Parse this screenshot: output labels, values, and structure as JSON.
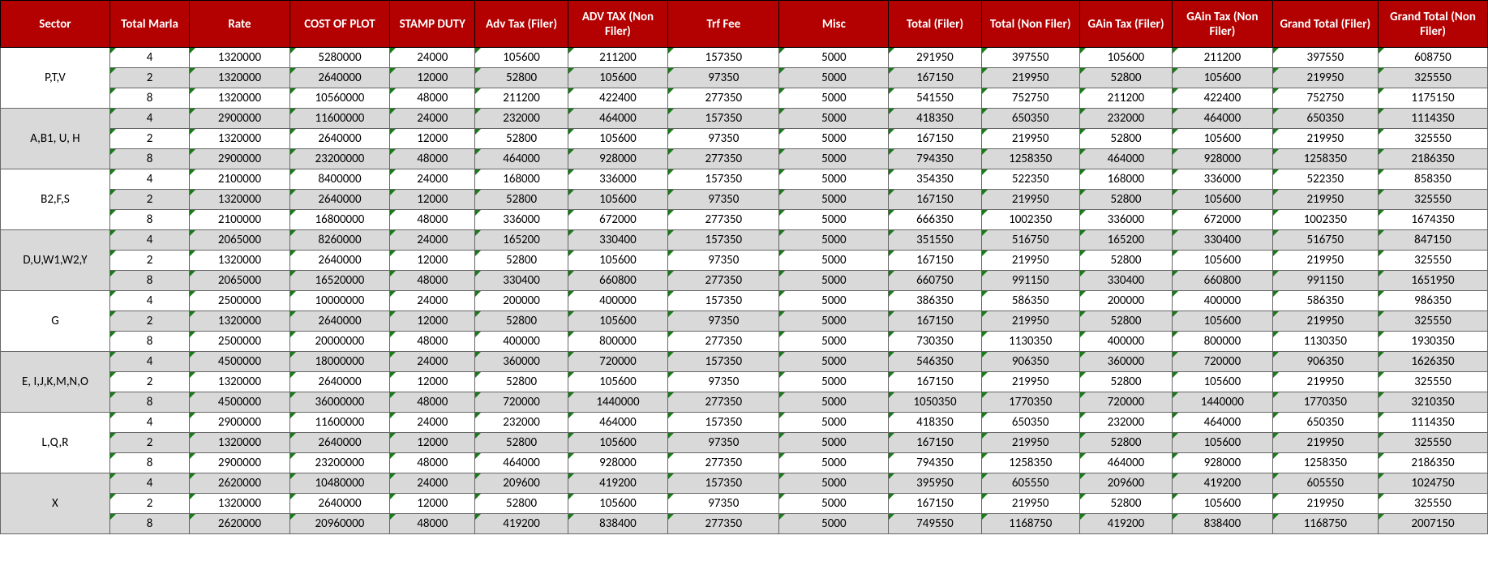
{
  "header_bg": "#b30000",
  "header_fg": "#ffffff",
  "shade_bg": "#d9d9d9",
  "columns": [
    "Sector",
    "Total Marla",
    "Rate",
    "COST OF PLOT",
    "STAMP DUTY",
    "Adv Tax (Filer)",
    "ADV TAX (Non Filer)",
    "Trf Fee",
    "Misc",
    "Total (Filer)",
    "Total (Non Filer)",
    "GAin Tax (Filer)",
    "GAin Tax (Non Filer)",
    "Grand Total (Filer)",
    "Grand Total (Non Filer)"
  ],
  "groups": [
    {
      "sector": "P,T,V",
      "sector_shaded": false,
      "rows": [
        {
          "shade": false,
          "marla": 4,
          "rate": 1320000,
          "cost": 5280000,
          "stamp": 24000,
          "advf": 105600,
          "advnf": 211200,
          "trf": 157350,
          "misc": 5000,
          "totf": 291950,
          "totnf": 397550,
          "gainf": 105600,
          "gainnf": 211200,
          "gtf": 397550,
          "gtnf": 608750
        },
        {
          "shade": true,
          "marla": 2,
          "rate": 1320000,
          "cost": 2640000,
          "stamp": 12000,
          "advf": 52800,
          "advnf": 105600,
          "trf": 97350,
          "misc": 5000,
          "totf": 167150,
          "totnf": 219950,
          "gainf": 52800,
          "gainnf": 105600,
          "gtf": 219950,
          "gtnf": 325550
        },
        {
          "shade": false,
          "marla": 8,
          "rate": 1320000,
          "cost": 10560000,
          "stamp": 48000,
          "advf": 211200,
          "advnf": 422400,
          "trf": 277350,
          "misc": 5000,
          "totf": 541550,
          "totnf": 752750,
          "gainf": 211200,
          "gainnf": 422400,
          "gtf": 752750,
          "gtnf": 1175150
        }
      ]
    },
    {
      "sector": "A,B1, U, H",
      "sector_shaded": true,
      "rows": [
        {
          "shade": true,
          "marla": 4,
          "rate": 2900000,
          "cost": 11600000,
          "stamp": 24000,
          "advf": 232000,
          "advnf": 464000,
          "trf": 157350,
          "misc": 5000,
          "totf": 418350,
          "totnf": 650350,
          "gainf": 232000,
          "gainnf": 464000,
          "gtf": 650350,
          "gtnf": 1114350
        },
        {
          "shade": false,
          "marla": 2,
          "rate": 1320000,
          "cost": 2640000,
          "stamp": 12000,
          "advf": 52800,
          "advnf": 105600,
          "trf": 97350,
          "misc": 5000,
          "totf": 167150,
          "totnf": 219950,
          "gainf": 52800,
          "gainnf": 105600,
          "gtf": 219950,
          "gtnf": 325550
        },
        {
          "shade": true,
          "marla": 8,
          "rate": 2900000,
          "cost": 23200000,
          "stamp": 48000,
          "advf": 464000,
          "advnf": 928000,
          "trf": 277350,
          "misc": 5000,
          "totf": 794350,
          "totnf": 1258350,
          "gainf": 464000,
          "gainnf": 928000,
          "gtf": 1258350,
          "gtnf": 2186350
        }
      ]
    },
    {
      "sector": "B2,F,S",
      "sector_shaded": false,
      "rows": [
        {
          "shade": false,
          "marla": 4,
          "rate": 2100000,
          "cost": 8400000,
          "stamp": 24000,
          "advf": 168000,
          "advnf": 336000,
          "trf": 157350,
          "misc": 5000,
          "totf": 354350,
          "totnf": 522350,
          "gainf": 168000,
          "gainnf": 336000,
          "gtf": 522350,
          "gtnf": 858350
        },
        {
          "shade": true,
          "marla": 2,
          "rate": 1320000,
          "cost": 2640000,
          "stamp": 12000,
          "advf": 52800,
          "advnf": 105600,
          "trf": 97350,
          "misc": 5000,
          "totf": 167150,
          "totnf": 219950,
          "gainf": 52800,
          "gainnf": 105600,
          "gtf": 219950,
          "gtnf": 325550
        },
        {
          "shade": false,
          "marla": 8,
          "rate": 2100000,
          "cost": 16800000,
          "stamp": 48000,
          "advf": 336000,
          "advnf": 672000,
          "trf": 277350,
          "misc": 5000,
          "totf": 666350,
          "totnf": 1002350,
          "gainf": 336000,
          "gainnf": 672000,
          "gtf": 1002350,
          "gtnf": 1674350
        }
      ]
    },
    {
      "sector": "D,U,W1,W2,Y",
      "sector_shaded": true,
      "rows": [
        {
          "shade": true,
          "marla": 4,
          "rate": 2065000,
          "cost": 8260000,
          "stamp": 24000,
          "advf": 165200,
          "advnf": 330400,
          "trf": 157350,
          "misc": 5000,
          "totf": 351550,
          "totnf": 516750,
          "gainf": 165200,
          "gainnf": 330400,
          "gtf": 516750,
          "gtnf": 847150
        },
        {
          "shade": false,
          "marla": 2,
          "rate": 1320000,
          "cost": 2640000,
          "stamp": 12000,
          "advf": 52800,
          "advnf": 105600,
          "trf": 97350,
          "misc": 5000,
          "totf": 167150,
          "totnf": 219950,
          "gainf": 52800,
          "gainnf": 105600,
          "gtf": 219950,
          "gtnf": 325550
        },
        {
          "shade": true,
          "marla": 8,
          "rate": 2065000,
          "cost": 16520000,
          "stamp": 48000,
          "advf": 330400,
          "advnf": 660800,
          "trf": 277350,
          "misc": 5000,
          "totf": 660750,
          "totnf": 991150,
          "gainf": 330400,
          "gainnf": 660800,
          "gtf": 991150,
          "gtnf": 1651950
        }
      ]
    },
    {
      "sector": "G",
      "sector_shaded": false,
      "rows": [
        {
          "shade": false,
          "marla": 4,
          "rate": 2500000,
          "cost": 10000000,
          "stamp": 24000,
          "advf": 200000,
          "advnf": 400000,
          "trf": 157350,
          "misc": 5000,
          "totf": 386350,
          "totnf": 586350,
          "gainf": 200000,
          "gainnf": 400000,
          "gtf": 586350,
          "gtnf": 986350
        },
        {
          "shade": true,
          "marla": 2,
          "rate": 1320000,
          "cost": 2640000,
          "stamp": 12000,
          "advf": 52800,
          "advnf": 105600,
          "trf": 97350,
          "misc": 5000,
          "totf": 167150,
          "totnf": 219950,
          "gainf": 52800,
          "gainnf": 105600,
          "gtf": 219950,
          "gtnf": 325550
        },
        {
          "shade": false,
          "marla": 8,
          "rate": 2500000,
          "cost": 20000000,
          "stamp": 48000,
          "advf": 400000,
          "advnf": 800000,
          "trf": 277350,
          "misc": 5000,
          "totf": 730350,
          "totnf": 1130350,
          "gainf": 400000,
          "gainnf": 800000,
          "gtf": 1130350,
          "gtnf": 1930350
        }
      ]
    },
    {
      "sector": "E, I,J,K,M,N,O",
      "sector_shaded": true,
      "rows": [
        {
          "shade": true,
          "marla": 4,
          "rate": 4500000,
          "cost": 18000000,
          "stamp": 24000,
          "advf": 360000,
          "advnf": 720000,
          "trf": 157350,
          "misc": 5000,
          "totf": 546350,
          "totnf": 906350,
          "gainf": 360000,
          "gainnf": 720000,
          "gtf": 906350,
          "gtnf": 1626350
        },
        {
          "shade": false,
          "marla": 2,
          "rate": 1320000,
          "cost": 2640000,
          "stamp": 12000,
          "advf": 52800,
          "advnf": 105600,
          "trf": 97350,
          "misc": 5000,
          "totf": 167150,
          "totnf": 219950,
          "gainf": 52800,
          "gainnf": 105600,
          "gtf": 219950,
          "gtnf": 325550
        },
        {
          "shade": true,
          "marla": 8,
          "rate": 4500000,
          "cost": 36000000,
          "stamp": 48000,
          "advf": 720000,
          "advnf": 1440000,
          "trf": 277350,
          "misc": 5000,
          "totf": 1050350,
          "totnf": 1770350,
          "gainf": 720000,
          "gainnf": 1440000,
          "gtf": 1770350,
          "gtnf": 3210350
        }
      ]
    },
    {
      "sector": "L,Q,R",
      "sector_shaded": false,
      "rows": [
        {
          "shade": false,
          "marla": 4,
          "rate": 2900000,
          "cost": 11600000,
          "stamp": 24000,
          "advf": 232000,
          "advnf": 464000,
          "trf": 157350,
          "misc": 5000,
          "totf": 418350,
          "totnf": 650350,
          "gainf": 232000,
          "gainnf": 464000,
          "gtf": 650350,
          "gtnf": 1114350
        },
        {
          "shade": true,
          "marla": 2,
          "rate": 1320000,
          "cost": 2640000,
          "stamp": 12000,
          "advf": 52800,
          "advnf": 105600,
          "trf": 97350,
          "misc": 5000,
          "totf": 167150,
          "totnf": 219950,
          "gainf": 52800,
          "gainnf": 105600,
          "gtf": 219950,
          "gtnf": 325550
        },
        {
          "shade": false,
          "marla": 8,
          "rate": 2900000,
          "cost": 23200000,
          "stamp": 48000,
          "advf": 464000,
          "advnf": 928000,
          "trf": 277350,
          "misc": 5000,
          "totf": 794350,
          "totnf": 1258350,
          "gainf": 464000,
          "gainnf": 928000,
          "gtf": 1258350,
          "gtnf": 2186350
        }
      ]
    },
    {
      "sector": "X",
      "sector_shaded": true,
      "rows": [
        {
          "shade": true,
          "marla": 4,
          "rate": 2620000,
          "cost": 10480000,
          "stamp": 24000,
          "advf": 209600,
          "advnf": 419200,
          "trf": 157350,
          "misc": 5000,
          "totf": 395950,
          "totnf": 605550,
          "gainf": 209600,
          "gainnf": 419200,
          "gtf": 605550,
          "gtnf": 1024750
        },
        {
          "shade": false,
          "marla": 2,
          "rate": 1320000,
          "cost": 2640000,
          "stamp": 12000,
          "advf": 52800,
          "advnf": 105600,
          "trf": 97350,
          "misc": 5000,
          "totf": 167150,
          "totnf": 219950,
          "gainf": 52800,
          "gainnf": 105600,
          "gtf": 219950,
          "gtnf": 325550
        },
        {
          "shade": true,
          "marla": 8,
          "rate": 2620000,
          "cost": 20960000,
          "stamp": 48000,
          "advf": 419200,
          "advnf": 838400,
          "trf": 277350,
          "misc": 5000,
          "totf": 749550,
          "totnf": 1168750,
          "gainf": 419200,
          "gainnf": 838400,
          "gtf": 1168750,
          "gtnf": 2007150
        }
      ]
    }
  ]
}
